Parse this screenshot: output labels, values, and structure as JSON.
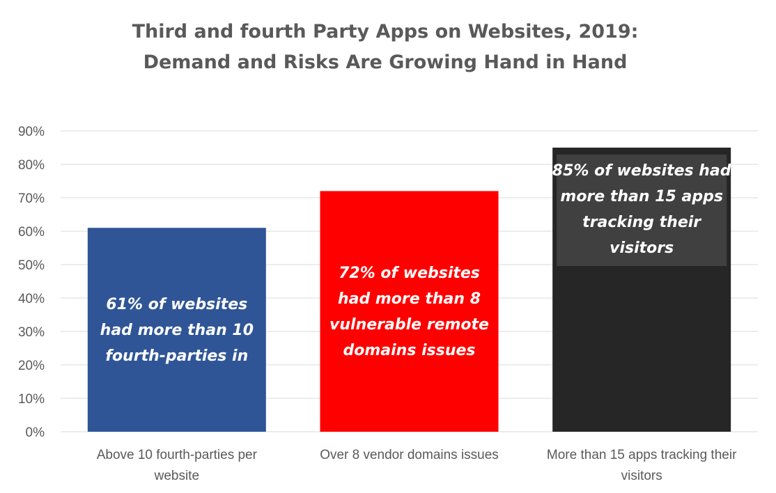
{
  "chart_data": {
    "type": "bar",
    "title": "Third and fourth Party Apps on Websites, 2019:",
    "subtitle": "Demand and Risks Are Growing Hand in Hand",
    "xlabel": "",
    "ylabel": "",
    "ylim": [
      0,
      90
    ],
    "ytick_step": 10,
    "ytick_format": "percent",
    "grid": true,
    "legend": "none",
    "categories": [
      "Above 10 fourth-parties per website",
      "Over 8 vendor domains issues",
      "More than 15 apps tracking their visitors"
    ],
    "category_label_lines": [
      [
        "Above 10 fourth-parties per",
        "website"
      ],
      [
        "Over 8 vendor domains issues"
      ],
      [
        "More than 15 apps tracking their",
        "visitors"
      ]
    ],
    "values": [
      61,
      72,
      85
    ],
    "colors": [
      "#2f5597",
      "#ff0000",
      "#262626"
    ],
    "annotations": [
      {
        "lines": [
          "61% of websites",
          "had more than 10",
          "fourth-parties in"
        ],
        "box_color": ""
      },
      {
        "lines": [
          "72% of websites",
          "had more than 8",
          "vulnerable remote",
          "domains issues"
        ],
        "box_color": ""
      },
      {
        "lines": [
          "85% of websites had",
          "more than 15 apps",
          "tracking their",
          "visitors"
        ],
        "box_color": "#404040"
      }
    ]
  }
}
